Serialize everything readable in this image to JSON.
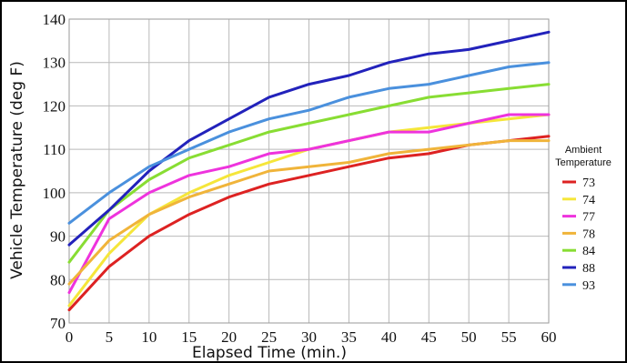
{
  "chart_data": {
    "type": "line",
    "xlabel": "Elapsed Time (min.)",
    "ylabel": "Vehicle Temperature (deg F)",
    "xlim": [
      0,
      60
    ],
    "ylim": [
      70,
      140
    ],
    "x_ticks": [
      "0",
      "5",
      "10",
      "15",
      "20",
      "25",
      "30",
      "35",
      "40",
      "45",
      "50",
      "55",
      "60"
    ],
    "y_ticks": [
      "70",
      "80",
      "90",
      "100",
      "110",
      "120",
      "130",
      "140"
    ],
    "grid": true,
    "legend_title": [
      "Ambient",
      "Temperature"
    ],
    "legend_position": "right",
    "x": [
      0,
      5,
      10,
      15,
      20,
      25,
      30,
      35,
      40,
      45,
      50,
      55,
      60
    ],
    "series": [
      {
        "name": "73",
        "color": "#dd2222",
        "values": [
          73,
          83,
          90,
          95,
          99,
          102,
          104,
          106,
          108,
          109,
          111,
          112,
          113
        ]
      },
      {
        "name": "74",
        "color": "#f5e63a",
        "values": [
          74,
          86,
          95,
          100,
          104,
          107,
          110,
          112,
          114,
          115,
          116,
          117,
          118
        ]
      },
      {
        "name": "77",
        "color": "#ee33dd",
        "values": [
          77,
          94,
          100,
          104,
          106,
          109,
          110,
          112,
          114,
          114,
          116,
          118,
          118
        ]
      },
      {
        "name": "78",
        "color": "#f0b43a",
        "values": [
          79,
          89,
          95,
          99,
          102,
          105,
          106,
          107,
          109,
          110,
          111,
          112,
          112
        ]
      },
      {
        "name": "84",
        "color": "#88dd33",
        "values": [
          84,
          96,
          103,
          108,
          111,
          114,
          116,
          118,
          120,
          122,
          123,
          124,
          125
        ]
      },
      {
        "name": "88",
        "color": "#2222bb",
        "values": [
          88,
          96,
          105,
          112,
          117,
          122,
          125,
          127,
          130,
          132,
          133,
          135,
          137
        ]
      },
      {
        "name": "93",
        "color": "#4a90dd",
        "values": [
          93,
          100,
          106,
          110,
          114,
          117,
          119,
          122,
          124,
          125,
          127,
          129,
          130
        ]
      }
    ]
  }
}
